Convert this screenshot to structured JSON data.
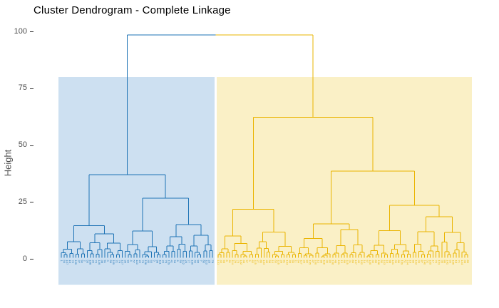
{
  "chart_data": {
    "type": "dendrogram",
    "title": "Cluster Dendrogram - Complete Linkage",
    "ylabel": "Height",
    "yticks": [
      100,
      75,
      50,
      25,
      0
    ],
    "ylim_shown": [
      -12,
      103
    ],
    "grid": false,
    "legend": false,
    "linkage": "complete",
    "n_clusters": 2,
    "root_height": 98.5,
    "title_color": "#000000",
    "axis_text_color": "#4D4D4D",
    "tick_mark_color": "#333333",
    "clusters": [
      {
        "id": 1,
        "side": "left",
        "line_color": "#1E73B5",
        "box_color": "#CDE0F1",
        "n_leaves": 53
      },
      {
        "id": 2,
        "side": "right",
        "line_color": "#EAB400",
        "box_color": "#FAF0C6",
        "n_leaves": 88
      }
    ],
    "cluster_boxes": {
      "h_top": 80,
      "h_bottom": -11.5
    },
    "leaf_labels_note": "tiny rotated numeric sample labels under each leaf, illegible at this resolution",
    "tree": {
      "h": 98.5,
      "children": [
        {
          "h": 37.0,
          "children": [
            {
              "h": 14.6,
              "children": [
                {
                  "n": 9,
                  "h": 7.5
                },
                {
                  "n": 13,
                  "h": 11.0
                }
              ]
            },
            {
              "h": 26.6,
              "children": [
                {
                  "n": 13,
                  "h": 12.3
                },
                {
                  "h": 15.1,
                  "children": [
                    {
                      "n": 9,
                      "h": 9.8
                    },
                    {
                      "n": 9,
                      "h": 10.4
                    }
                  ]
                }
              ]
            }
          ]
        },
        {
          "h": 62.2,
          "children": [
            {
              "h": 21.8,
              "children": [
                {
                  "n": 13,
                  "h": 10.0
                },
                {
                  "n": 15,
                  "h": 11.8
                }
              ]
            },
            {
              "h": 38.6,
              "children": [
                {
                  "h": 15.4,
                  "children": [
                    {
                      "n": 12,
                      "h": 9.0
                    },
                    {
                      "n": 12,
                      "h": 12.8
                    }
                  ]
                },
                {
                  "h": 23.6,
                  "children": [
                    {
                      "n": 16,
                      "h": 12.4
                    },
                    {
                      "h": 18.5,
                      "children": [
                        {
                          "n": 10,
                          "h": 12.0
                        },
                        {
                          "n": 10,
                          "h": 11.6
                        }
                      ]
                    }
                  ]
                }
              ]
            }
          ]
        }
      ]
    }
  }
}
